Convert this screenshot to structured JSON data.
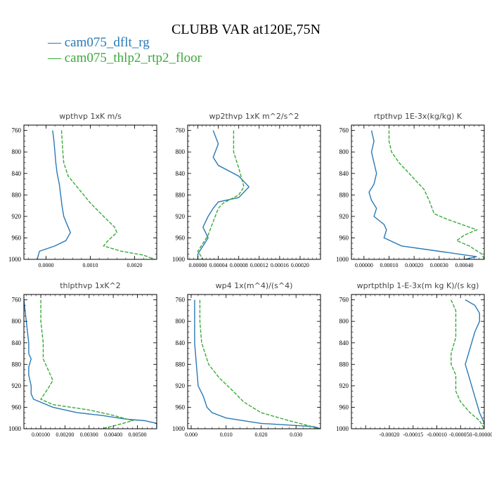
{
  "title": "CLUBB VAR at120E,75N",
  "legend": [
    {
      "label": "— cam075_dflt_rg",
      "color": "#2a7ab5"
    },
    {
      "label": "— cam075_thlp2_rtp2_floor",
      "color": "#3aaa3a"
    }
  ],
  "chart_data": [
    {
      "type": "line",
      "title": "wpthvp   1xK m/s",
      "ylim": [
        1000,
        750
      ],
      "yticks": [
        "760",
        "800",
        "840",
        "880",
        "920",
        "960",
        "1000"
      ],
      "xlim": [
        -0.0005,
        0.0025
      ],
      "xticks": [
        0.0,
        0.001,
        0.002
      ],
      "xtick_labels": [
        "0.0000",
        "0.0010",
        "0.0020"
      ],
      "series": [
        {
          "color": "#2a7ab5",
          "points": [
            [
              0.00015,
              760
            ],
            [
              0.00018,
              780
            ],
            [
              0.0002,
              800
            ],
            [
              0.00022,
              820
            ],
            [
              0.00025,
              840
            ],
            [
              0.0003,
              860
            ],
            [
              0.00033,
              880
            ],
            [
              0.00036,
              900
            ],
            [
              0.0004,
              920
            ],
            [
              0.0005,
              940
            ],
            [
              0.00055,
              950
            ],
            [
              0.00045,
              965
            ],
            [
              0.0002,
              975
            ],
            [
              -0.00015,
              985
            ],
            [
              -0.0002,
              1000
            ]
          ]
        },
        {
          "color": "#3aaa3a",
          "points": [
            [
              0.00035,
              760
            ],
            [
              0.00038,
              800
            ],
            [
              0.0004,
              820
            ],
            [
              0.0005,
              845
            ],
            [
              0.00075,
              870
            ],
            [
              0.001,
              895
            ],
            [
              0.0013,
              920
            ],
            [
              0.00155,
              940
            ],
            [
              0.0016,
              950
            ],
            [
              0.0014,
              965
            ],
            [
              0.0013,
              975
            ],
            [
              0.0017,
              985
            ],
            [
              0.0022,
              992
            ],
            [
              0.00245,
              1000
            ]
          ]
        }
      ]
    },
    {
      "type": "line",
      "title": "wp2thvp   1xK m^2/s^2",
      "ylim": [
        1000,
        750
      ],
      "yticks": [
        "760",
        "800",
        "840",
        "880",
        "920",
        "960",
        "1000"
      ],
      "xlim": [
        -2e-05,
        0.00024
      ],
      "xticks": [
        0.0,
        4e-05,
        8e-05,
        0.00012,
        0.00016,
        0.0002
      ],
      "xtick_labels": [
        "0.00000",
        "0.00004",
        "0.00008",
        "0.00012",
        "0.00016",
        "0.00020"
      ],
      "series": [
        {
          "color": "#2a7ab5",
          "points": [
            [
              3e-05,
              760
            ],
            [
              4e-05,
              785
            ],
            [
              3e-05,
              810
            ],
            [
              4e-05,
              825
            ],
            [
              8e-05,
              845
            ],
            [
              0.0001,
              865
            ],
            [
              8e-05,
              885
            ],
            [
              4e-05,
              893
            ],
            [
              3e-05,
              905
            ],
            [
              2e-05,
              920
            ],
            [
              1e-05,
              940
            ],
            [
              2e-05,
              960
            ],
            [
              1e-05,
              975
            ],
            [
              0.0,
              990
            ],
            [
              0.0,
              1000
            ]
          ]
        },
        {
          "color": "#3aaa3a",
          "points": [
            [
              7e-05,
              760
            ],
            [
              7e-05,
              800
            ],
            [
              8e-05,
              830
            ],
            [
              9e-05,
              865
            ],
            [
              8e-05,
              880
            ],
            [
              6e-05,
              890
            ],
            [
              5e-05,
              895
            ],
            [
              4e-05,
              905
            ],
            [
              3e-05,
              930
            ],
            [
              2e-05,
              955
            ],
            [
              1e-05,
              970
            ],
            [
              0.0,
              985
            ],
            [
              1e-05,
              1000
            ]
          ]
        }
      ]
    },
    {
      "type": "line",
      "title": "rtpthvp   1E-3x(kg/kg) K",
      "ylim": [
        1000,
        750
      ],
      "yticks": [
        "760",
        "800",
        "840",
        "880",
        "920",
        "960",
        "1000"
      ],
      "xlim": [
        -5e-05,
        0.00048
      ],
      "xticks": [
        0.0,
        0.0001,
        0.0002,
        0.0003,
        0.0004
      ],
      "xtick_labels": [
        "0.00000",
        "0.00010",
        "0.00020",
        "0.00030",
        "0.00040"
      ],
      "series": [
        {
          "color": "#2a7ab5",
          "points": [
            [
              3e-05,
              760
            ],
            [
              4e-05,
              780
            ],
            [
              3e-05,
              800
            ],
            [
              4e-05,
              820
            ],
            [
              5e-05,
              840
            ],
            [
              4e-05,
              860
            ],
            [
              2e-05,
              875
            ],
            [
              3e-05,
              890
            ],
            [
              5e-05,
              905
            ],
            [
              4e-05,
              920
            ],
            [
              8e-05,
              935
            ],
            [
              9e-05,
              945
            ],
            [
              8e-05,
              960
            ],
            [
              0.00015,
              975
            ],
            [
              0.0003,
              985
            ],
            [
              0.00045,
              995
            ],
            [
              0.0004,
              1000
            ]
          ]
        },
        {
          "color": "#3aaa3a",
          "points": [
            [
              0.0001,
              760
            ],
            [
              0.0001,
              780
            ],
            [
              0.00011,
              800
            ],
            [
              0.00014,
              820
            ],
            [
              0.00017,
              835
            ],
            [
              0.0002,
              850
            ],
            [
              0.00024,
              870
            ],
            [
              0.00026,
              890
            ],
            [
              0.00028,
              915
            ],
            [
              0.00033,
              925
            ],
            [
              0.00039,
              935
            ],
            [
              0.00045,
              945
            ],
            [
              0.0004,
              955
            ],
            [
              0.00037,
              965
            ],
            [
              0.00042,
              975
            ],
            [
              0.00047,
              990
            ],
            [
              0.00048,
              1000
            ]
          ]
        }
      ]
    },
    {
      "type": "line",
      "title": "thlpthvp   1xK^2",
      "ylim": [
        1000,
        750
      ],
      "yticks": [
        "760",
        "800",
        "840",
        "880",
        "920",
        "960",
        "1000"
      ],
      "xlim": [
        0.0003,
        0.0058
      ],
      "xticks": [
        0.001,
        0.002,
        0.003,
        0.004,
        0.005
      ],
      "xtick_labels": [
        "0.00100",
        "0.00200",
        "0.00300",
        "0.00400",
        "0.00500"
      ],
      "series": [
        {
          "color": "#2a7ab5",
          "points": [
            [
              0.0003,
              760
            ],
            [
              0.0004,
              800
            ],
            [
              0.0005,
              840
            ],
            [
              0.0005,
              860
            ],
            [
              0.0006,
              870
            ],
            [
              0.0005,
              885
            ],
            [
              0.0005,
              900
            ],
            [
              0.0006,
              920
            ],
            [
              0.0006,
              935
            ],
            [
              0.0007,
              945
            ],
            [
              0.0015,
              960
            ],
            [
              0.0025,
              970
            ],
            [
              0.0035,
              975
            ],
            [
              0.0045,
              982
            ],
            [
              0.0053,
              985
            ],
            [
              0.0058,
              990
            ],
            [
              0.0058,
              1000
            ]
          ]
        },
        {
          "color": "#3aaa3a",
          "points": [
            [
              0.001,
              760
            ],
            [
              0.001,
              800
            ],
            [
              0.0011,
              840
            ],
            [
              0.0011,
              870
            ],
            [
              0.0013,
              890
            ],
            [
              0.0015,
              910
            ],
            [
              0.0013,
              925
            ],
            [
              0.001,
              945
            ],
            [
              0.0015,
              955
            ],
            [
              0.003,
              965
            ],
            [
              0.004,
              975
            ],
            [
              0.0048,
              985
            ],
            [
              0.004,
              995
            ],
            [
              0.0035,
              1000
            ]
          ]
        }
      ]
    },
    {
      "type": "line",
      "title": "wp4   1x(m^4)/(s^4)",
      "ylim": [
        1000,
        750
      ],
      "yticks": [
        "760",
        "800",
        "840",
        "880",
        "920",
        "960",
        "1000"
      ],
      "xlim": [
        -0.001,
        0.037
      ],
      "xticks": [
        0.0,
        0.01,
        0.02,
        0.03
      ],
      "xtick_labels": [
        "0.000",
        "0.010",
        "0.020",
        "0.030"
      ],
      "series": [
        {
          "color": "#2a7ab5",
          "points": [
            [
              0.001,
              760
            ],
            [
              0.001,
              800
            ],
            [
              0.001,
              840
            ],
            [
              0.0015,
              880
            ],
            [
              0.002,
              920
            ],
            [
              0.0035,
              940
            ],
            [
              0.0045,
              960
            ],
            [
              0.006,
              970
            ],
            [
              0.01,
              980
            ],
            [
              0.02,
              990
            ],
            [
              0.035,
              996
            ],
            [
              0.037,
              1000
            ]
          ]
        },
        {
          "color": "#3aaa3a",
          "points": [
            [
              0.0025,
              760
            ],
            [
              0.0025,
              800
            ],
            [
              0.003,
              840
            ],
            [
              0.005,
              880
            ],
            [
              0.008,
              905
            ],
            [
              0.012,
              930
            ],
            [
              0.015,
              950
            ],
            [
              0.02,
              970
            ],
            [
              0.028,
              985
            ],
            [
              0.034,
              995
            ],
            [
              0.036,
              1000
            ]
          ]
        }
      ]
    },
    {
      "type": "line",
      "title": "wprtpthlp   1-E-3x(m kg K)/(s kg)",
      "ylim": [
        1000,
        750
      ],
      "yticks": [
        "760",
        "800",
        "840",
        "880",
        "920",
        "960",
        "1000"
      ],
      "xlim": [
        -0.00028,
        0.0
      ],
      "xticks": [
        -0.00025,
        -0.0002,
        -0.00015,
        -0.0001,
        -5e-05,
        0.0
      ],
      "xtick_labels": [
        "",
        "-0.00020",
        "-0.00015",
        "-0.00010",
        "-0.000050",
        "-0.000000"
      ],
      "series": [
        {
          "color": "#2a7ab5",
          "points": [
            [
              -4e-05,
              760
            ],
            [
              -2e-05,
              770
            ],
            [
              -1e-05,
              785
            ],
            [
              -1e-05,
              800
            ],
            [
              -2e-05,
              820
            ],
            [
              -3e-05,
              850
            ],
            [
              -4e-05,
              880
            ],
            [
              -3e-05,
              910
            ],
            [
              -2e-05,
              940
            ],
            [
              -1e-05,
              970
            ],
            [
              0.0,
              990
            ],
            [
              0.0,
              1000
            ]
          ]
        },
        {
          "color": "#3aaa3a",
          "points": [
            [
              -7e-05,
              760
            ],
            [
              -6e-05,
              780
            ],
            [
              -6e-05,
              800
            ],
            [
              -6e-05,
              830
            ],
            [
              -7e-05,
              860
            ],
            [
              -7e-05,
              880
            ],
            [
              -6e-05,
              900
            ],
            [
              -6e-05,
              930
            ],
            [
              -5e-05,
              950
            ],
            [
              -3e-05,
              970
            ],
            [
              -1e-05,
              985
            ],
            [
              0.0,
              1000
            ]
          ]
        }
      ]
    }
  ]
}
